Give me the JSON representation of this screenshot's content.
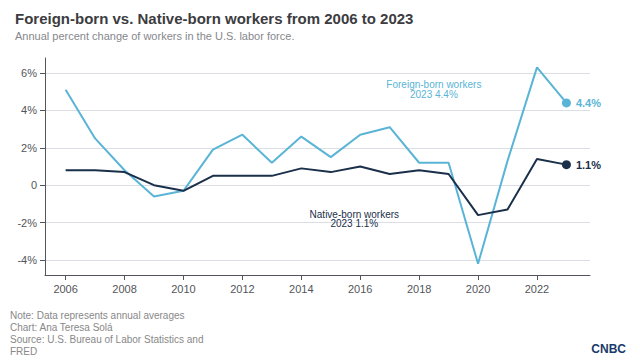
{
  "chart_data": {
    "type": "line",
    "title": "Foreign-born vs. Native-born workers from 2006 to 2023",
    "subtitle": "Annual percent change of workers in the U.S. labor force.",
    "notes": [
      "Note: Data represents annual averages",
      "Chart: Ana Teresa Solá",
      "Source: U.S. Bureau of Labor Statistics and\nFRED"
    ],
    "logo": "CNBC",
    "x": [
      2006,
      2007,
      2008,
      2009,
      2010,
      2011,
      2012,
      2013,
      2014,
      2015,
      2016,
      2017,
      2018,
      2019,
      2020,
      2021,
      2022,
      2023
    ],
    "series": [
      {
        "name": "Foreign-born workers",
        "color": "#5ab4d6",
        "values": [
          5.1,
          2.5,
          0.8,
          -0.6,
          -0.3,
          1.9,
          2.7,
          1.2,
          2.6,
          1.5,
          2.7,
          3.1,
          1.2,
          1.2,
          -4.2,
          1.3,
          6.3,
          4.4
        ],
        "value_labels": [
          null,
          null,
          null,
          null,
          null,
          null,
          null,
          null,
          null,
          null,
          null,
          null,
          null,
          null,
          null,
          null,
          null,
          "4.4%"
        ]
      },
      {
        "name": "Native-born workers",
        "color": "#1a2f4a",
        "values": [
          0.8,
          0.8,
          0.7,
          0.0,
          -0.3,
          0.5,
          0.5,
          0.5,
          0.9,
          0.7,
          1.0,
          0.6,
          0.8,
          0.6,
          -1.6,
          -1.3,
          1.4,
          1.1
        ],
        "value_labels": [
          null,
          null,
          null,
          null,
          null,
          null,
          null,
          null,
          null,
          null,
          null,
          null,
          null,
          null,
          null,
          null,
          null,
          "1.1%"
        ]
      }
    ],
    "annotations": [
      {
        "text": "Foreign-born workers",
        "x": 2018.5,
        "y": 5.4,
        "series": "Foreign-born workers"
      },
      {
        "text": "2023 4.4%",
        "x": 2018.5,
        "y": 4.85,
        "series": "Foreign-born workers"
      },
      {
        "text": "Native-born workers",
        "x": 2015.8,
        "y": -1.55,
        "series": "Native-born workers"
      },
      {
        "text": "2023 1.1%",
        "x": 2015.8,
        "y": -2.05,
        "series": "Native-born workers"
      }
    ],
    "xlim": [
      2005.3,
      2023.8
    ],
    "xticks": [
      2006,
      2008,
      2010,
      2012,
      2014,
      2016,
      2018,
      2020,
      2022
    ],
    "ylim": [
      -4.8,
      6.8
    ],
    "yticks": [
      {
        "value": -4,
        "label": "-4%"
      },
      {
        "value": -2,
        "label": "-2%"
      },
      0,
      {
        "value": 2,
        "label": "2%"
      },
      {
        "value": 4,
        "label": "4%"
      },
      {
        "value": 6,
        "label": "6%"
      }
    ],
    "grid": true
  }
}
